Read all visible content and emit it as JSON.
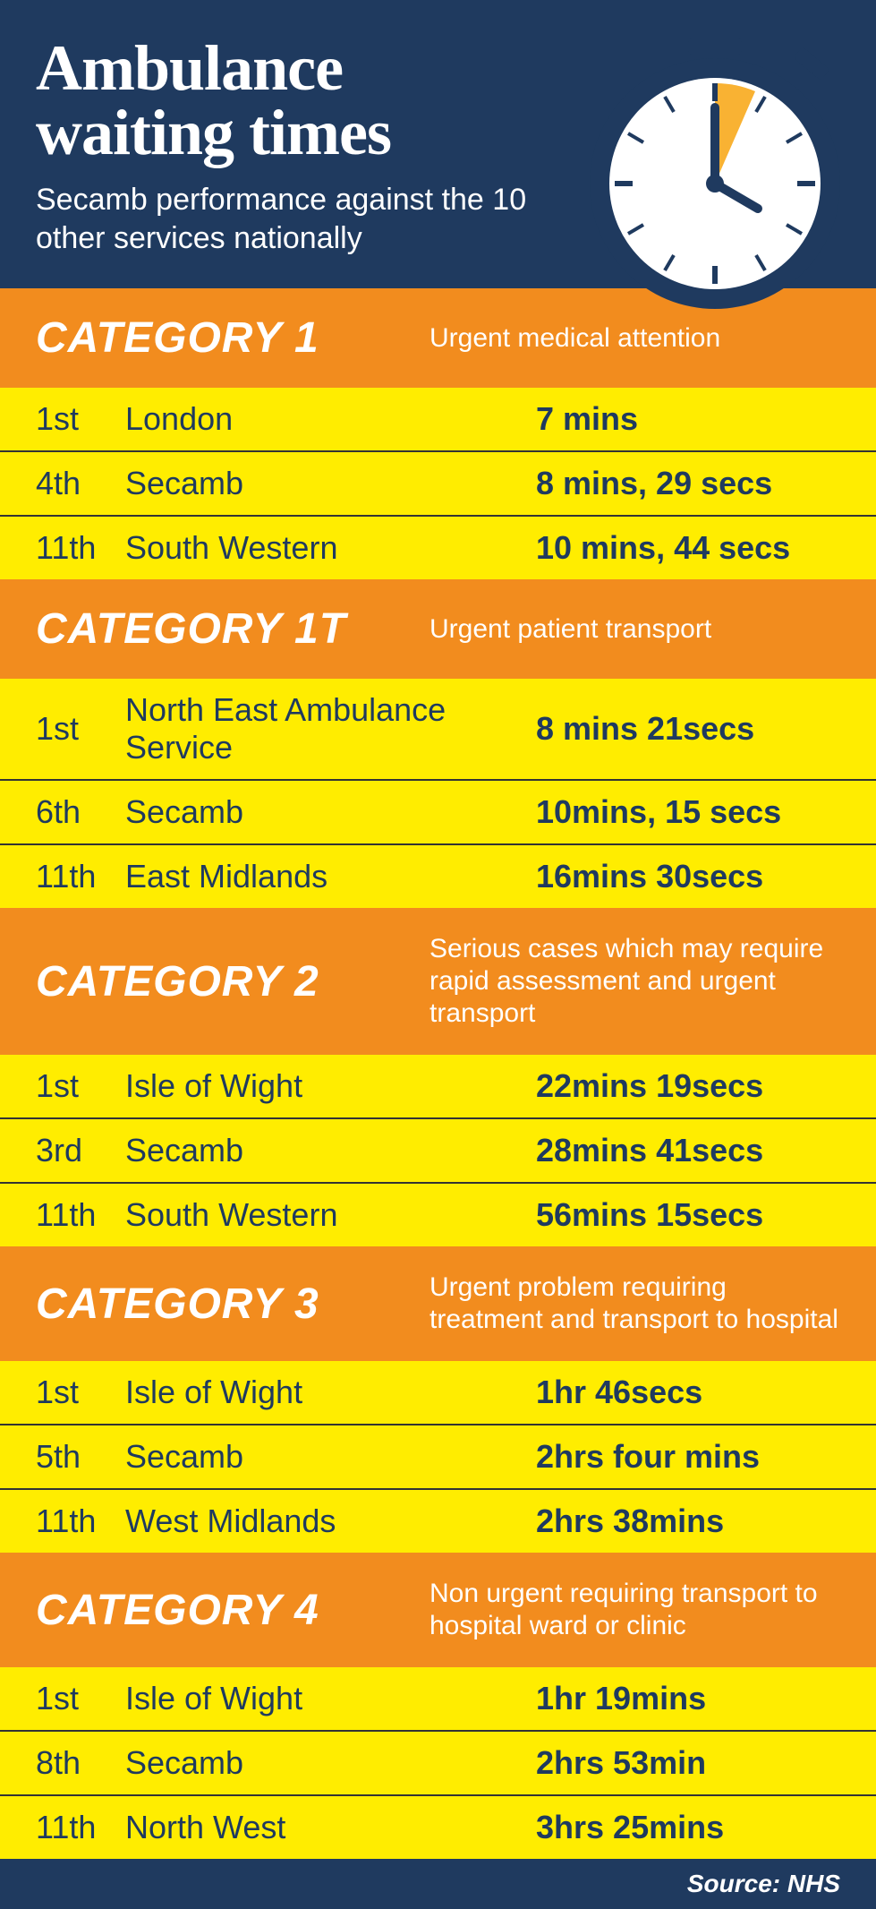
{
  "header": {
    "title_line1": "Ambulance",
    "title_line2": "waiting times",
    "subtitle": "Secamb performance against the 10 other services nationally"
  },
  "colors": {
    "header_bg": "#1f3a5f",
    "cat_bg": "#f28c1e",
    "row_bg": "#ffed00",
    "text_dark": "#1f3a5f",
    "text_light": "#ffffff",
    "stopwatch_accent": "#f9b233",
    "stopwatch_body": "#1f3a5f",
    "stopwatch_face": "#ffffff"
  },
  "categories": [
    {
      "title": "CATEGORY 1",
      "desc": "Urgent medical attention",
      "rows": [
        {
          "rank": "1st",
          "service": "London",
          "time": "7 mins"
        },
        {
          "rank": "4th",
          "service": "Secamb",
          "time": "8 mins, 29 secs"
        },
        {
          "rank": "11th",
          "service": "South Western",
          "time": "10 mins, 44 secs"
        }
      ]
    },
    {
      "title": "CATEGORY 1T",
      "desc": "Urgent patient transport",
      "rows": [
        {
          "rank": "1st",
          "service": "North East Ambulance Service",
          "time": "8 mins 21secs"
        },
        {
          "rank": "6th",
          "service": "Secamb",
          "time": "10mins, 15 secs"
        },
        {
          "rank": "11th",
          "service": "East Midlands",
          "time": "16mins 30secs"
        }
      ]
    },
    {
      "title": "CATEGORY 2",
      "desc": "Serious cases which may require rapid assessment and urgent transport",
      "rows": [
        {
          "rank": "1st",
          "service": "Isle of Wight",
          "time": "22mins 19secs"
        },
        {
          "rank": "3rd",
          "service": "Secamb",
          "time": "28mins 41secs"
        },
        {
          "rank": "11th",
          "service": "South Western",
          "time": "56mins 15secs"
        }
      ]
    },
    {
      "title": "CATEGORY 3",
      "desc": "Urgent problem requiring treatment and transport to hospital",
      "rows": [
        {
          "rank": "1st",
          "service": "Isle of Wight",
          "time": "1hr 46secs"
        },
        {
          "rank": "5th",
          "service": "Secamb",
          "time": "2hrs four mins"
        },
        {
          "rank": "11th",
          "service": "West Midlands",
          "time": "2hrs 38mins"
        }
      ]
    },
    {
      "title": "CATEGORY 4",
      "desc": "Non urgent requiring transport to hospital ward or clinic",
      "rows": [
        {
          "rank": "1st",
          "service": "Isle of Wight",
          "time": "1hr 19mins"
        },
        {
          "rank": "8th",
          "service": "Secamb",
          "time": "2hrs 53min"
        },
        {
          "rank": "11th",
          "service": "North West",
          "time": "3hrs 25mins"
        }
      ]
    }
  ],
  "source": "Source: NHS"
}
